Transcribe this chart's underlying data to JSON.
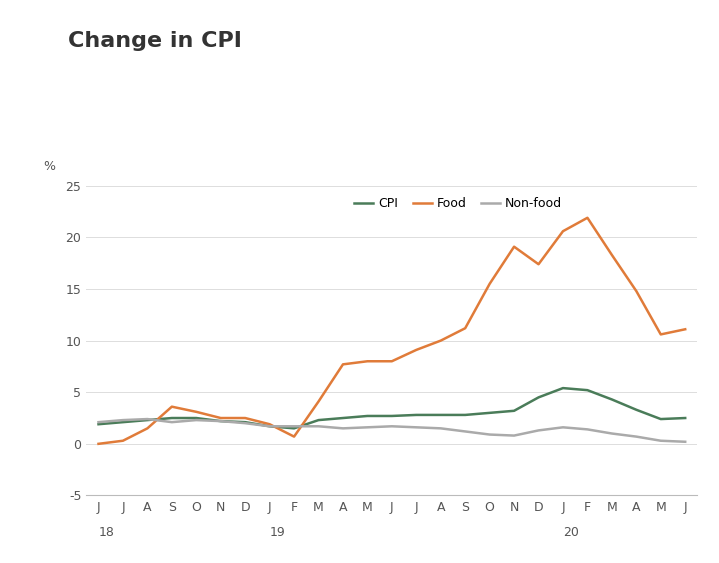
{
  "title": "Change in CPI",
  "ylabel": "%",
  "ylim": [
    -5,
    25
  ],
  "yticks": [
    -5,
    0,
    5,
    10,
    15,
    20,
    25
  ],
  "x_labels": [
    "J",
    "J",
    "A",
    "S",
    "O",
    "N",
    "D",
    "J",
    "F",
    "M",
    "A",
    "M",
    "J",
    "J",
    "A",
    "S",
    "O",
    "N",
    "D",
    "J",
    "F",
    "M",
    "A",
    "M",
    "J"
  ],
  "year_labels": [
    [
      "18",
      0
    ],
    [
      "19",
      7
    ],
    [
      "20",
      19
    ]
  ],
  "cpi": [
    1.9,
    2.1,
    2.3,
    2.5,
    2.5,
    2.2,
    2.1,
    1.7,
    1.5,
    2.3,
    2.5,
    2.7,
    2.7,
    2.8,
    2.8,
    2.8,
    3.0,
    3.2,
    4.5,
    5.4,
    5.2,
    4.3,
    3.3,
    2.4,
    2.5
  ],
  "food": [
    0.0,
    0.3,
    1.5,
    3.6,
    3.1,
    2.5,
    2.5,
    1.9,
    0.7,
    4.1,
    7.7,
    8.0,
    8.0,
    9.1,
    10.0,
    11.2,
    15.5,
    19.1,
    17.4,
    20.6,
    21.9,
    18.3,
    14.8,
    10.6,
    11.1
  ],
  "nonfood": [
    2.1,
    2.3,
    2.4,
    2.1,
    2.3,
    2.2,
    2.0,
    1.7,
    1.7,
    1.7,
    1.5,
    1.6,
    1.7,
    1.6,
    1.5,
    1.2,
    0.9,
    0.8,
    1.3,
    1.6,
    1.4,
    1.0,
    0.7,
    0.3,
    0.2
  ],
  "cpi_color": "#4a7c59",
  "food_color": "#e07b39",
  "nonfood_color": "#aaaaaa",
  "title_color": "#333333",
  "accent_color": "#e07b39",
  "legend_labels": [
    "CPI",
    "Food",
    "Non-food"
  ],
  "background_color": "#ffffff",
  "title_fontsize": 16,
  "axis_fontsize": 9
}
